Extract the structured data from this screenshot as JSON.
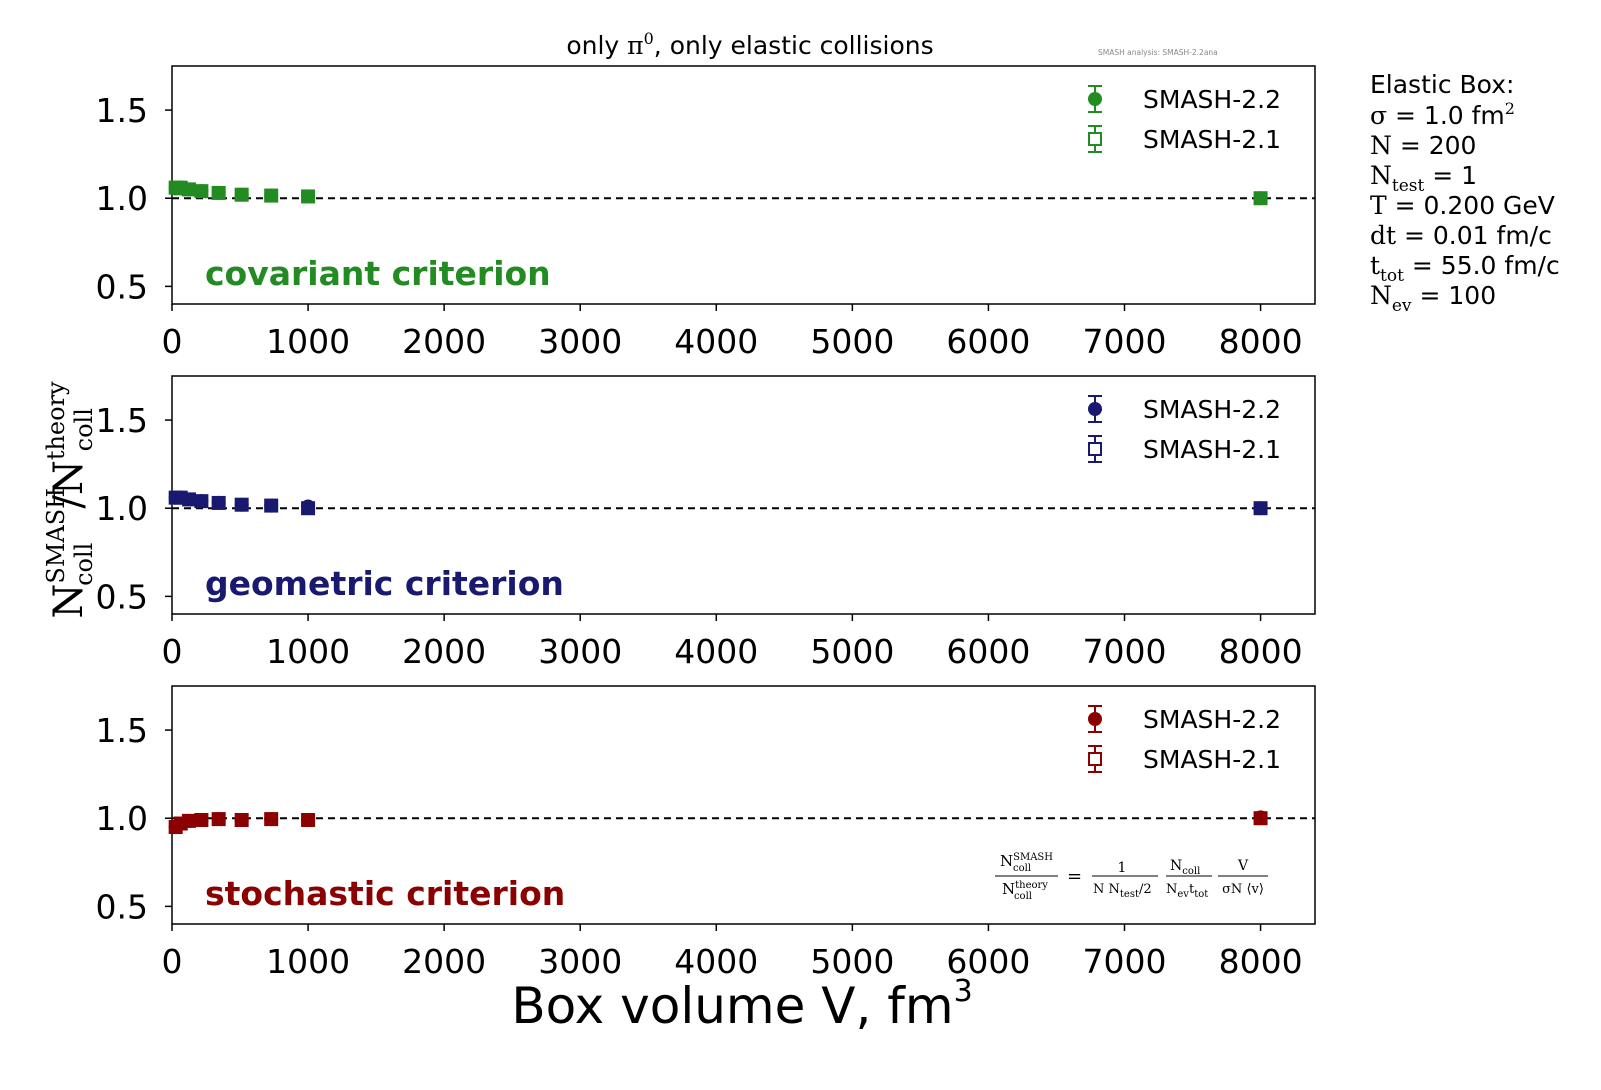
{
  "figure": {
    "title_prefix": "only ",
    "title_symbol": "π",
    "title_symbol_sup": "0",
    "title_suffix": ", only elastic collisions",
    "watermark": "SMASH analysis: SMASH-2.2ana",
    "xlabel": "Box volume V, fm",
    "xlabel_sup": "3",
    "ylabel_N1": "N",
    "ylabel_sup1": "SMASH",
    "ylabel_sub1": "coll",
    "ylabel_slash": "/",
    "ylabel_N2": "N",
    "ylabel_sup2": "theory",
    "ylabel_sub2": "coll"
  },
  "info_box": {
    "line1": "Elastic Box:",
    "sigma_sym": "σ",
    "sigma_val": " = 1.0 fm",
    "sigma_sup": "2",
    "n_sym": "N",
    "n_val": " = 200",
    "ntest_sym": "N",
    "ntest_sub": "test",
    "ntest_val": " = 1",
    "t_sym": "T",
    "t_val": " = 0.200 GeV",
    "dt_sym": "dt",
    "dt_val": " = 0.01 fm/c",
    "ttot_sym": "t",
    "ttot_sub": "tot",
    "ttot_val": " = 55.0 fm/c",
    "nev_sym": "N",
    "nev_sub": "ev",
    "nev_val": " = 100"
  },
  "formula": {
    "lhs_num_N": "N",
    "lhs_num_sup": "SMASH",
    "lhs_num_sub": "coll",
    "lhs_den_N": "N",
    "lhs_den_sup": "theory",
    "lhs_den_sub": "coll",
    "eq": "=",
    "f1_num": "1",
    "f1_den_a": "N N",
    "f1_den_sub": "test",
    "f1_den_b": "/2",
    "f2_num_N": "N",
    "f2_num_sub": "coll",
    "f2_den_N": "N",
    "f2_den_sub1": "ev",
    "f2_den_t": "t",
    "f2_den_sub2": "tot",
    "f3_num": "V",
    "f3_den": "σN ⟨v⟩"
  },
  "chart_data": [
    {
      "type": "scatter",
      "panel_label": "covariant criterion",
      "color": "#228b22",
      "xlim": [
        0,
        8400
      ],
      "ylim": [
        0.4,
        1.75
      ],
      "xticks": [
        0,
        1000,
        2000,
        3000,
        4000,
        5000,
        6000,
        7000,
        8000
      ],
      "yticks": [
        0.5,
        1.0,
        1.5
      ],
      "ytick_labels": [
        "0.5",
        "1.0",
        "1.5"
      ],
      "reference_line": 1.0,
      "legend_position": "top-right",
      "series": [
        {
          "name": "SMASH-2.2",
          "marker": "filled-circle",
          "x": [
            27,
            64,
            125,
            216,
            343,
            512,
            729,
            1000,
            8000
          ],
          "y": [
            1.055,
            1.055,
            1.05,
            1.04,
            1.03,
            1.02,
            1.015,
            1.01,
            1.0
          ]
        },
        {
          "name": "SMASH-2.1",
          "marker": "open-square",
          "x": [
            27,
            64,
            125,
            216,
            343,
            512,
            729,
            1000,
            8000
          ],
          "y": [
            1.06,
            1.06,
            1.05,
            1.04,
            1.03,
            1.02,
            1.015,
            1.01,
            1.0
          ]
        }
      ]
    },
    {
      "type": "scatter",
      "panel_label": "geometric criterion",
      "color": "#191970",
      "xlim": [
        0,
        8400
      ],
      "ylim": [
        0.4,
        1.75
      ],
      "xticks": [
        0,
        1000,
        2000,
        3000,
        4000,
        5000,
        6000,
        7000,
        8000
      ],
      "yticks": [
        0.5,
        1.0,
        1.5
      ],
      "ytick_labels": [
        "0.5",
        "1.0",
        "1.5"
      ],
      "reference_line": 1.0,
      "legend_position": "top-right",
      "series": [
        {
          "name": "SMASH-2.2",
          "marker": "filled-circle",
          "x": [
            27,
            64,
            125,
            216,
            343,
            512,
            729,
            1000,
            8000
          ],
          "y": [
            1.06,
            1.06,
            1.05,
            1.04,
            1.03,
            1.02,
            1.015,
            1.01,
            1.0
          ]
        },
        {
          "name": "SMASH-2.1",
          "marker": "open-square",
          "x": [
            27,
            64,
            125,
            216,
            343,
            512,
            729,
            1000,
            8000
          ],
          "y": [
            1.06,
            1.06,
            1.05,
            1.04,
            1.03,
            1.02,
            1.015,
            1.0,
            1.0
          ]
        }
      ]
    },
    {
      "type": "scatter",
      "panel_label": "stochastic criterion",
      "color": "#8b0000",
      "xlim": [
        0,
        8400
      ],
      "ylim": [
        0.4,
        1.75
      ],
      "xticks": [
        0,
        1000,
        2000,
        3000,
        4000,
        5000,
        6000,
        7000,
        8000
      ],
      "yticks": [
        0.5,
        1.0,
        1.5
      ],
      "ytick_labels": [
        "0.5",
        "1.0",
        "1.5"
      ],
      "reference_line": 1.0,
      "legend_position": "top-right",
      "series": [
        {
          "name": "SMASH-2.2",
          "marker": "filled-circle",
          "x": [
            27,
            64,
            125,
            216,
            343,
            512,
            729,
            1000,
            8000
          ],
          "y": [
            0.95,
            0.97,
            0.985,
            0.99,
            0.995,
            0.99,
            0.995,
            0.99,
            1.005
          ]
        },
        {
          "name": "SMASH-2.1",
          "marker": "open-square",
          "x": [
            27,
            64,
            125,
            216,
            343,
            512,
            729,
            1000,
            8000
          ],
          "y": [
            0.95,
            0.97,
            0.985,
            0.99,
            0.995,
            0.99,
            0.995,
            0.99,
            1.0
          ]
        }
      ]
    }
  ]
}
